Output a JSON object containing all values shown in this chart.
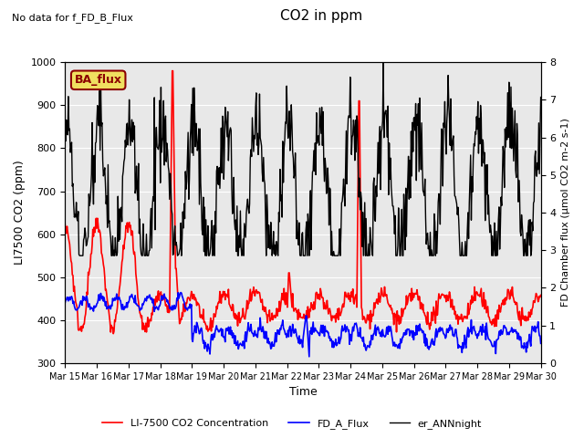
{
  "title": "CO2 in ppm",
  "top_left_text": "No data for f_FD_B_Flux",
  "ba_flux_label": "BA_flux",
  "xlabel": "Time",
  "ylabel_left": "LI7500 CO2 (ppm)",
  "ylabel_right": "FD Chamber flux (µmol CO2 m-2 s-1)",
  "ylim_left": [
    300,
    1000
  ],
  "ylim_right": [
    0.0,
    8.0
  ],
  "x_tick_labels": [
    "Mar 15",
    "Mar 16",
    "Mar 17",
    "Mar 18",
    "Mar 19",
    "Mar 20",
    "Mar 21",
    "Mar 22",
    "Mar 23",
    "Mar 24",
    "Mar 25",
    "Mar 26",
    "Mar 27",
    "Mar 28",
    "Mar 29",
    "Mar 30"
  ],
  "legend_entries": [
    "LI-7500 CO2 Concentration",
    "FD_A_Flux",
    "er_ANNnight"
  ],
  "legend_colors": [
    "red",
    "blue",
    "black"
  ],
  "bg_color": "#e8e8e8",
  "fig_bg": "white",
  "line_lw_red": 1.2,
  "line_lw_blue": 1.2,
  "line_lw_black": 1.0
}
